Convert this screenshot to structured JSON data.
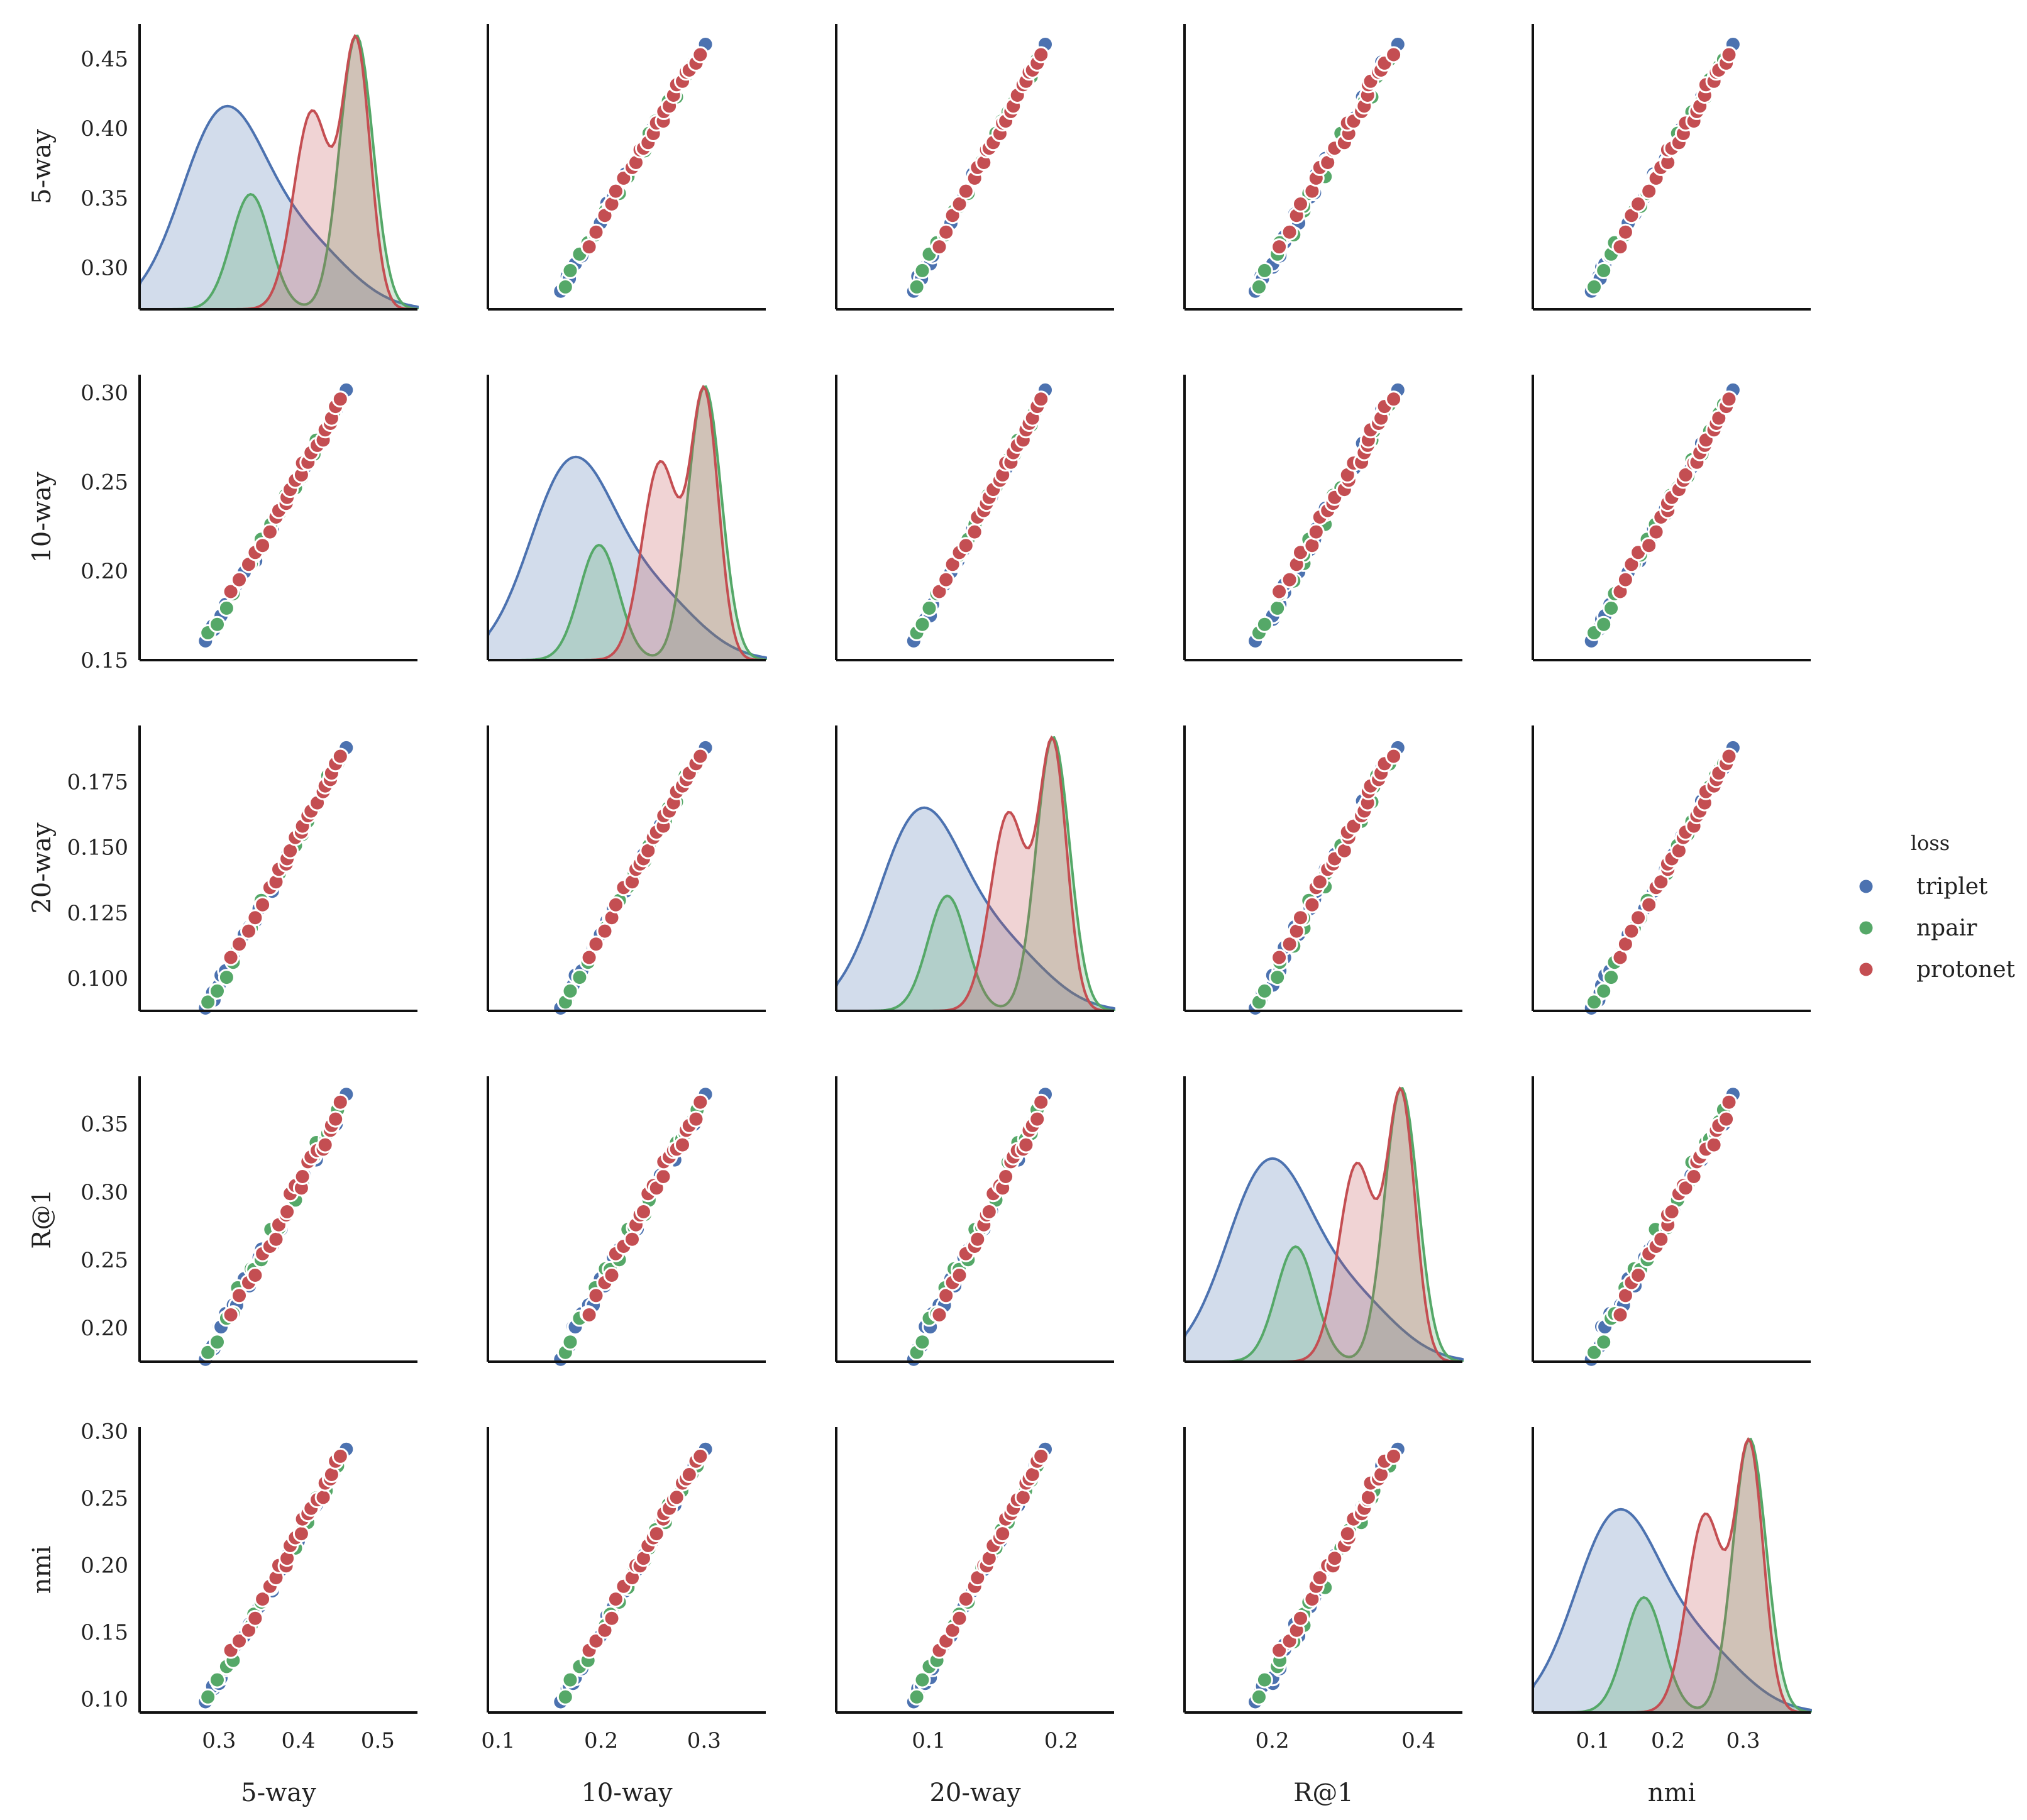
{
  "chart_data": {
    "type": "pairplot",
    "variables": [
      "5-way",
      "10-way",
      "20-way",
      "R@1",
      "nmi"
    ],
    "hue": "loss",
    "legend": {
      "title": "loss",
      "placement": "right",
      "entries": [
        {
          "name": "triplet",
          "color": "#4c72b0"
        },
        {
          "name": "npair",
          "color": "#55a868"
        },
        {
          "name": "protonet",
          "color": "#c44e52"
        }
      ]
    },
    "axes": [
      {
        "name": "5-way",
        "range": [
          0.2,
          0.55
        ],
        "ticks": [
          0.3,
          0.4,
          0.5
        ],
        "tick_labels": [
          "0.3",
          "0.4",
          "0.5"
        ],
        "row_range": [
          0.27,
          0.475
        ],
        "row_ticks": [
          0.3,
          0.35,
          0.4,
          0.45
        ],
        "row_tick_labels": [
          "0.30",
          "0.35",
          "0.40",
          "0.45"
        ]
      },
      {
        "name": "10-way",
        "range": [
          0.09,
          0.36
        ],
        "ticks": [
          0.1,
          0.2,
          0.3
        ],
        "tick_labels": [
          "0.1",
          "0.2",
          "0.3"
        ],
        "row_range": [
          0.15,
          0.31
        ],
        "row_ticks": [
          0.15,
          0.2,
          0.25,
          0.3
        ],
        "row_tick_labels": [
          "0.15",
          "0.20",
          "0.25",
          "0.30"
        ]
      },
      {
        "name": "20-way",
        "range": [
          0.03,
          0.24
        ],
        "ticks": [
          0.1,
          0.2
        ],
        "tick_labels": [
          "0.1",
          "0.2"
        ],
        "row_range": [
          0.0875,
          0.1965
        ],
        "row_ticks": [
          0.1,
          0.125,
          0.15,
          0.175
        ],
        "row_tick_labels": [
          "0.100",
          "0.125",
          "0.150",
          "0.175"
        ]
      },
      {
        "name": "R@1",
        "range": [
          0.08,
          0.46
        ],
        "ticks": [
          0.2,
          0.4
        ],
        "tick_labels": [
          "0.2",
          "0.4"
        ],
        "row_range": [
          0.175,
          0.385
        ],
        "row_ticks": [
          0.2,
          0.25,
          0.3,
          0.35
        ],
        "row_tick_labels": [
          "0.20",
          "0.25",
          "0.30",
          "0.35"
        ]
      },
      {
        "name": "nmi",
        "range": [
          0.02,
          0.39
        ],
        "ticks": [
          0.1,
          0.2,
          0.3
        ],
        "tick_labels": [
          "0.1",
          "0.2",
          "0.3"
        ],
        "row_range": [
          0.09,
          0.303
        ],
        "row_ticks": [
          0.1,
          0.15,
          0.2,
          0.25,
          0.3
        ],
        "row_tick_labels": [
          "0.10",
          "0.15",
          "0.20",
          "0.25",
          "0.30"
        ]
      }
    ],
    "scatter_series": [
      {
        "name": "triplet",
        "color": "#4c72b0",
        "t": [
          0.0,
          0.03,
          0.05,
          0.08,
          0.1,
          0.13,
          0.18,
          0.22,
          0.27,
          0.3,
          0.33,
          0.36,
          0.4,
          0.45,
          0.52,
          0.58,
          0.64,
          0.7,
          0.78,
          0.85,
          0.92,
          1.0
        ]
      },
      {
        "name": "npair",
        "color": "#55a868",
        "t": [
          0.01,
          0.06,
          0.12,
          0.17,
          0.23,
          0.3,
          0.35,
          0.4,
          0.46,
          0.52,
          0.57,
          0.62,
          0.67,
          0.72,
          0.76,
          0.8,
          0.84,
          0.88,
          0.91,
          0.94
        ]
      },
      {
        "name": "protonet",
        "color": "#c44e52",
        "t": [
          0.18,
          0.24,
          0.29,
          0.34,
          0.39,
          0.44,
          0.48,
          0.52,
          0.55,
          0.58,
          0.61,
          0.64,
          0.67,
          0.7,
          0.73,
          0.76,
          0.79,
          0.82,
          0.85,
          0.88,
          0.91,
          0.94,
          0.97
        ]
      }
    ],
    "kde_series": [
      {
        "name": "triplet",
        "color": "#4c72b0",
        "peaks": [
          {
            "loc": 0.3,
            "width": 0.15,
            "height": 0.7
          },
          {
            "loc": 0.6,
            "width": 0.16,
            "height": 0.22
          }
        ]
      },
      {
        "name": "npair",
        "color": "#55a868",
        "peaks": [
          {
            "loc": 0.4,
            "width": 0.07,
            "height": 0.42
          },
          {
            "loc": 0.78,
            "width": 0.06,
            "height": 1.0
          }
        ]
      },
      {
        "name": "protonet",
        "color": "#c44e52",
        "peaks": [
          {
            "loc": 0.62,
            "width": 0.065,
            "height": 0.72
          },
          {
            "loc": 0.78,
            "width": 0.05,
            "height": 0.96
          }
        ]
      }
    ]
  }
}
